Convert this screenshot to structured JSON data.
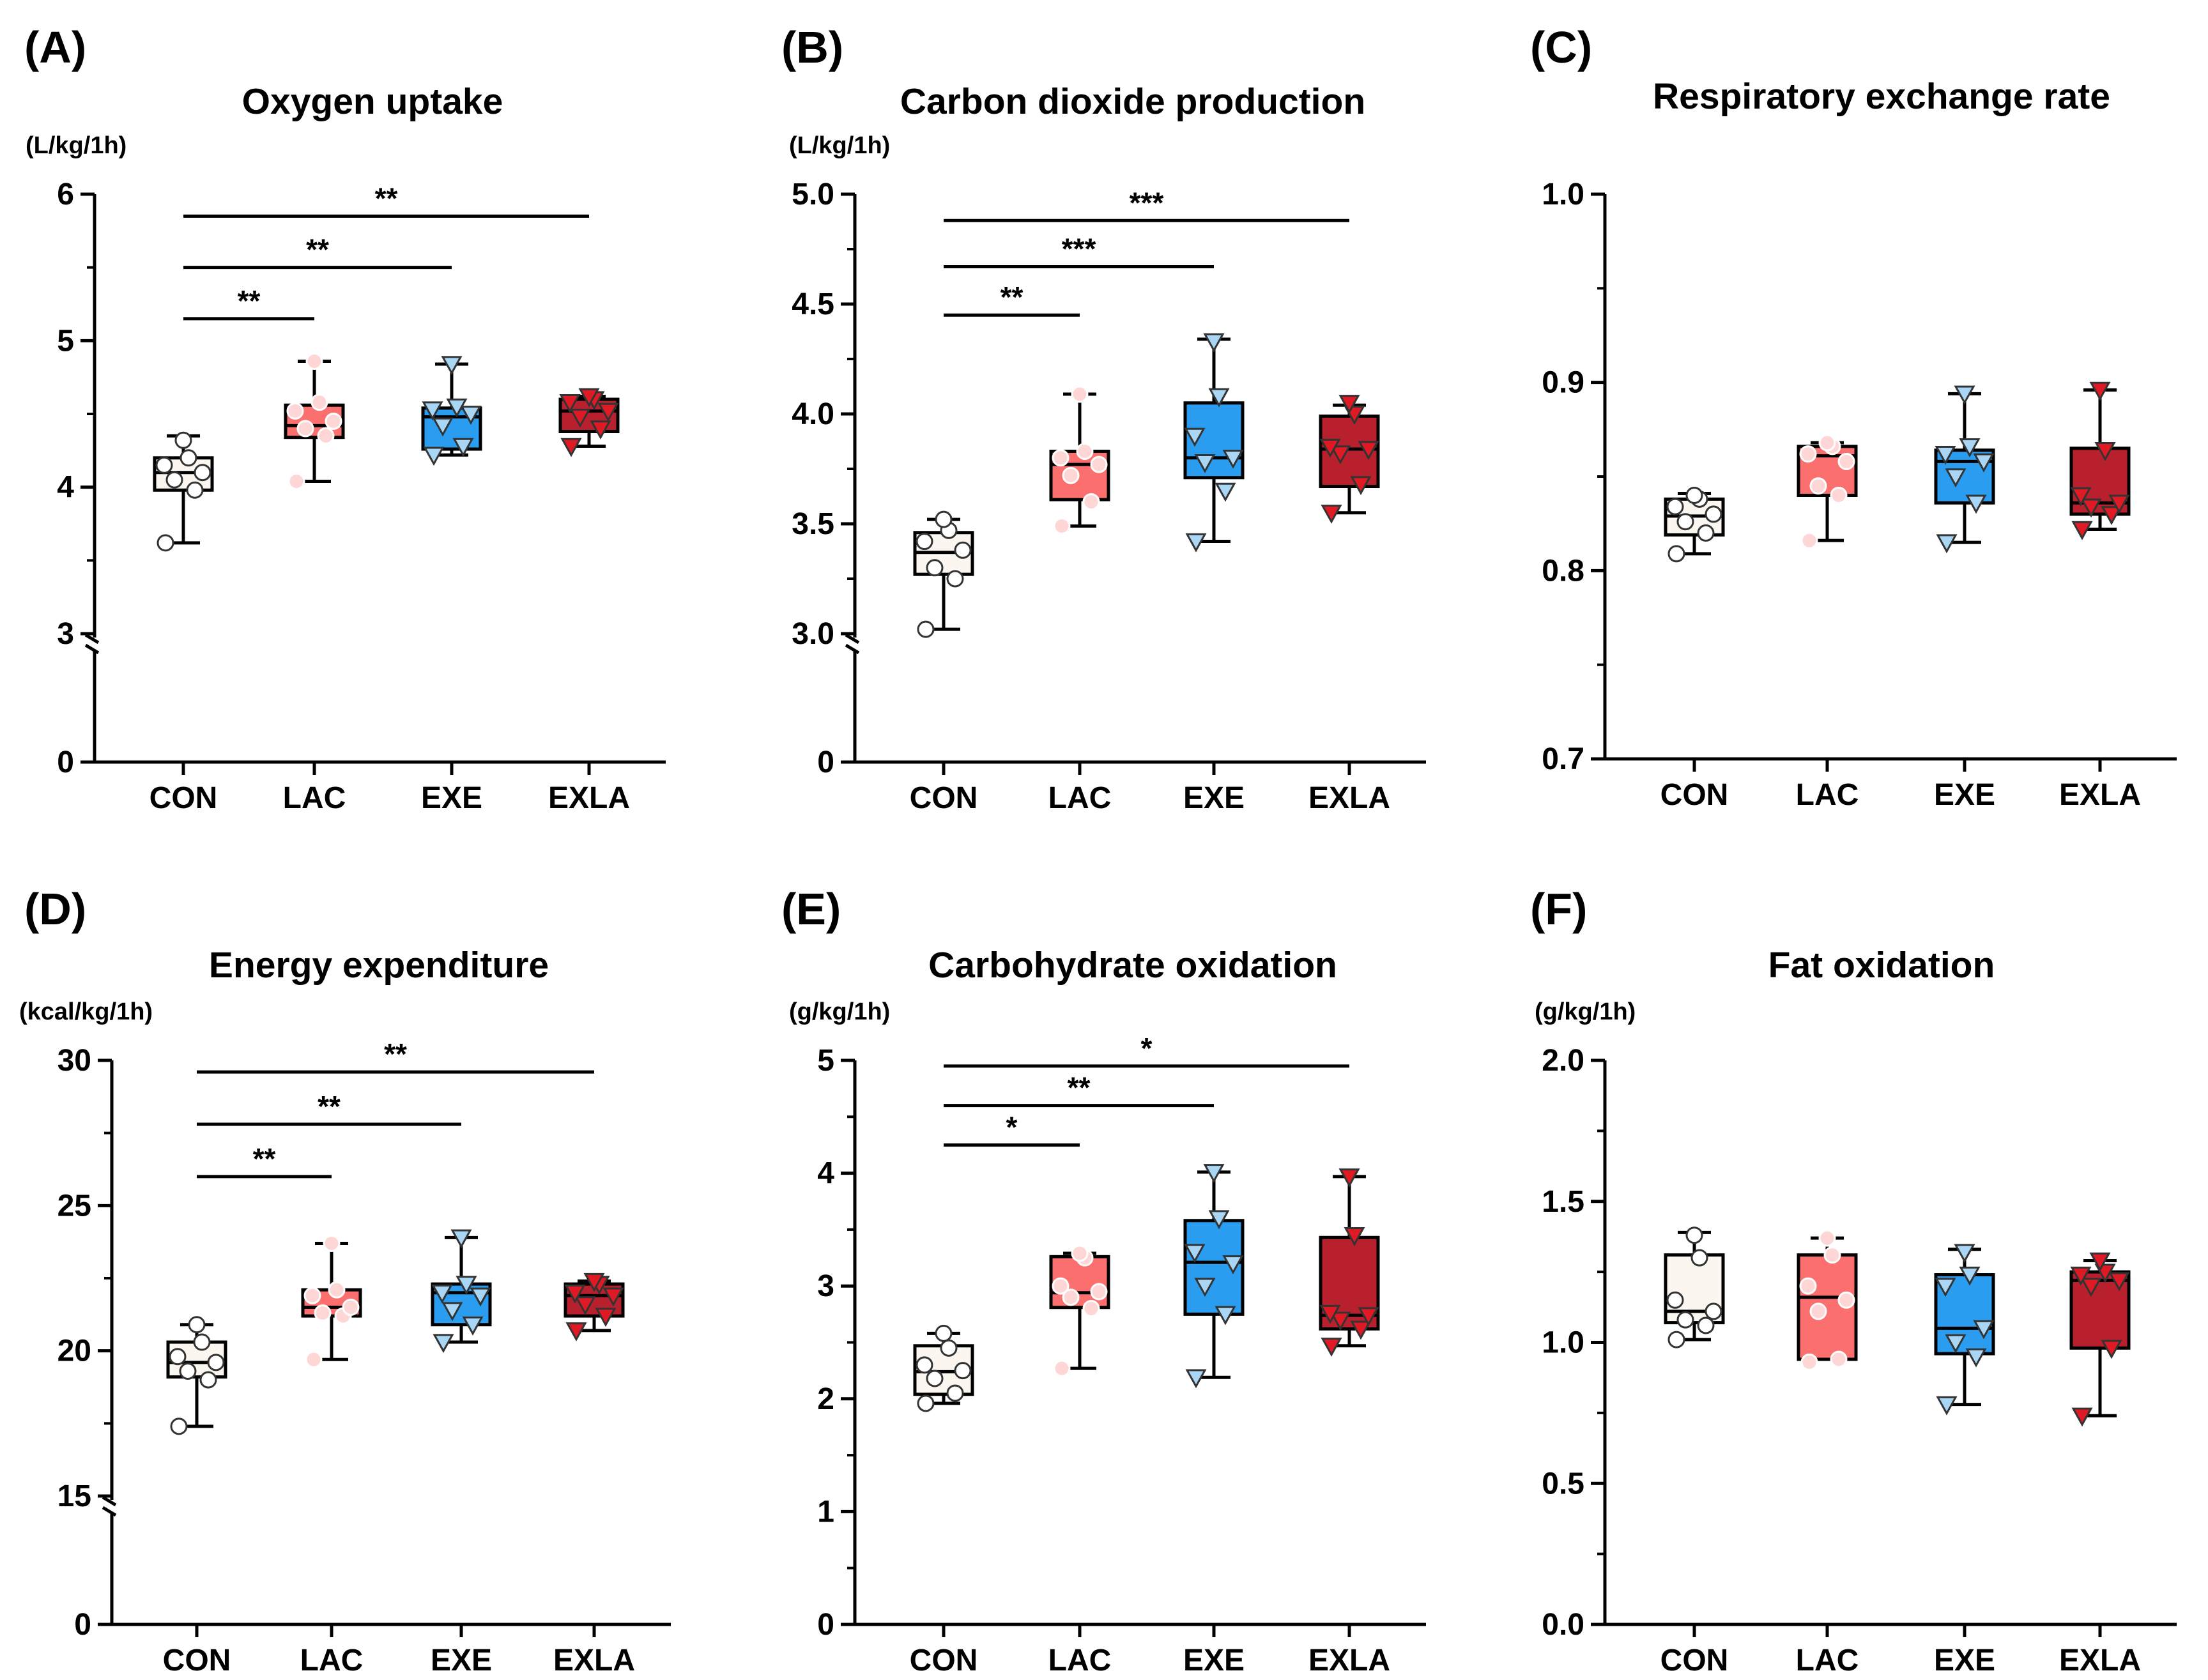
{
  "figure": {
    "description_groups": [
      "CON",
      "LAC",
      "EXE",
      "EXLA"
    ]
  },
  "colors": {
    "CON": "#fbf7f0",
    "LAC": "#fc6f6f",
    "EXE": "#2a9df0",
    "EXLA": "#b8202e",
    "LAC_marker": "#ffd6d6",
    "EXE_marker": "#a9d6f5",
    "EXLA_marker": "#e01a25",
    "CON_marker": "#ffffff"
  },
  "chart_data": [
    {
      "type": "box",
      "label": "(A)",
      "title": "Oxygen uptake",
      "ylabel": "(L/kg/1h)",
      "categories": [
        "CON",
        "LAC",
        "EXE",
        "EXLA"
      ],
      "ylim": [
        0,
        6
      ],
      "axis_break": [
        0,
        3
      ],
      "yticks": [
        {
          "v": 0,
          "t": "0"
        },
        {
          "v": 3,
          "t": "3"
        },
        {
          "v": 4,
          "t": "4"
        },
        {
          "v": 5,
          "t": "5"
        },
        {
          "v": 6,
          "t": "6"
        }
      ],
      "boxes": [
        {
          "group": "CON",
          "min": 3.62,
          "q1": 3.98,
          "median": 4.1,
          "q3": 4.2,
          "max": 4.35,
          "points": [
            3.62,
            3.98,
            4.05,
            4.1,
            4.15,
            4.2,
            4.32
          ]
        },
        {
          "group": "LAC",
          "min": 4.04,
          "q1": 4.34,
          "median": 4.42,
          "q3": 4.56,
          "max": 4.86,
          "points": [
            4.04,
            4.35,
            4.4,
            4.45,
            4.52,
            4.58,
            4.86
          ]
        },
        {
          "group": "EXE",
          "min": 4.22,
          "q1": 4.26,
          "median": 4.48,
          "q3": 4.54,
          "max": 4.84,
          "points": [
            4.22,
            4.28,
            4.42,
            4.5,
            4.53,
            4.55,
            4.84
          ]
        },
        {
          "group": "EXLA",
          "min": 4.28,
          "q1": 4.38,
          "median": 4.52,
          "q3": 4.6,
          "max": 4.62,
          "points": [
            4.28,
            4.4,
            4.48,
            4.52,
            4.58,
            4.6,
            4.62
          ]
        }
      ],
      "significance": [
        {
          "from": "CON",
          "to": "LAC",
          "y": 5.15,
          "label": "**"
        },
        {
          "from": "CON",
          "to": "EXE",
          "y": 5.5,
          "label": "**"
        },
        {
          "from": "CON",
          "to": "EXLA",
          "y": 5.85,
          "label": "**"
        }
      ]
    },
    {
      "type": "box",
      "label": "(B)",
      "title": "Carbon dioxide production",
      "ylabel": "(L/kg/1h)",
      "categories": [
        "CON",
        "LAC",
        "EXE",
        "EXLA"
      ],
      "ylim": [
        0,
        5.0
      ],
      "axis_break": [
        0,
        3.0
      ],
      "yticks": [
        {
          "v": 0,
          "t": "0"
        },
        {
          "v": 3.0,
          "t": "3.0"
        },
        {
          "v": 3.5,
          "t": "3.5"
        },
        {
          "v": 4.0,
          "t": "4.0"
        },
        {
          "v": 4.5,
          "t": "4.5"
        },
        {
          "v": 5.0,
          "t": "5.0"
        }
      ],
      "boxes": [
        {
          "group": "CON",
          "min": 3.02,
          "q1": 3.27,
          "median": 3.37,
          "q3": 3.46,
          "max": 3.52,
          "points": [
            3.02,
            3.25,
            3.3,
            3.38,
            3.42,
            3.47,
            3.52
          ]
        },
        {
          "group": "LAC",
          "min": 3.49,
          "q1": 3.61,
          "median": 3.77,
          "q3": 3.83,
          "max": 4.09,
          "points": [
            3.49,
            3.6,
            3.72,
            3.77,
            3.8,
            3.83,
            4.09
          ]
        },
        {
          "group": "EXE",
          "min": 3.42,
          "q1": 3.71,
          "median": 3.8,
          "q3": 4.05,
          "max": 4.34,
          "points": [
            3.42,
            3.65,
            3.78,
            3.8,
            3.9,
            4.08,
            4.33
          ]
        },
        {
          "group": "EXLA",
          "min": 3.55,
          "q1": 3.67,
          "median": 3.84,
          "q3": 3.99,
          "max": 4.04,
          "points": [
            3.55,
            3.68,
            3.82,
            3.84,
            3.85,
            4.0,
            4.05
          ]
        }
      ],
      "significance": [
        {
          "from": "CON",
          "to": "LAC",
          "y": 4.45,
          "label": "**"
        },
        {
          "from": "CON",
          "to": "EXE",
          "y": 4.67,
          "label": "***"
        },
        {
          "from": "CON",
          "to": "EXLA",
          "y": 4.88,
          "label": "***"
        }
      ]
    },
    {
      "type": "box",
      "label": "(C)",
      "title": "Respiratory exchange rate",
      "ylabel": "",
      "categories": [
        "CON",
        "LAC",
        "EXE",
        "EXLA"
      ],
      "ylim": [
        0.7,
        1.0
      ],
      "axis_break": null,
      "yticks": [
        {
          "v": 0.7,
          "t": "0.7"
        },
        {
          "v": 0.8,
          "t": "0.8"
        },
        {
          "v": 0.9,
          "t": "0.9"
        },
        {
          "v": 1.0,
          "t": "1.0"
        }
      ],
      "boxes": [
        {
          "group": "CON",
          "min": 0.809,
          "q1": 0.819,
          "median": 0.829,
          "q3": 0.838,
          "max": 0.841,
          "points": [
            0.809,
            0.82,
            0.826,
            0.83,
            0.834,
            0.838,
            0.84
          ]
        },
        {
          "group": "LAC",
          "min": 0.816,
          "q1": 0.84,
          "median": 0.861,
          "q3": 0.866,
          "max": 0.868,
          "points": [
            0.816,
            0.84,
            0.845,
            0.858,
            0.862,
            0.866,
            0.868
          ]
        },
        {
          "group": "EXE",
          "min": 0.815,
          "q1": 0.836,
          "median": 0.858,
          "q3": 0.864,
          "max": 0.894,
          "points": [
            0.815,
            0.836,
            0.85,
            0.858,
            0.862,
            0.866,
            0.894
          ]
        },
        {
          "group": "EXLA",
          "min": 0.822,
          "q1": 0.83,
          "median": 0.836,
          "q3": 0.865,
          "max": 0.896,
          "points": [
            0.822,
            0.83,
            0.834,
            0.836,
            0.84,
            0.864,
            0.896
          ]
        }
      ],
      "significance": []
    },
    {
      "type": "box",
      "label": "(D)",
      "title": "Energy expenditure",
      "ylabel": "(kcal/kg/1h)",
      "categories": [
        "CON",
        "LAC",
        "EXE",
        "EXLA"
      ],
      "ylim": [
        0,
        30
      ],
      "axis_break": [
        0,
        15
      ],
      "yticks": [
        {
          "v": 0,
          "t": "0"
        },
        {
          "v": 15,
          "t": "15"
        },
        {
          "v": 20,
          "t": "20"
        },
        {
          "v": 25,
          "t": "25"
        },
        {
          "v": 30,
          "t": "30"
        }
      ],
      "boxes": [
        {
          "group": "CON",
          "min": 17.4,
          "q1": 19.1,
          "median": 19.6,
          "q3": 20.3,
          "max": 20.9,
          "points": [
            17.4,
            19.0,
            19.3,
            19.6,
            19.8,
            20.3,
            20.9
          ]
        },
        {
          "group": "LAC",
          "min": 19.7,
          "q1": 21.2,
          "median": 21.5,
          "q3": 22.1,
          "max": 23.7,
          "points": [
            19.7,
            21.2,
            21.3,
            21.5,
            21.9,
            22.1,
            23.7
          ]
        },
        {
          "group": "EXE",
          "min": 20.3,
          "q1": 20.9,
          "median": 22.0,
          "q3": 22.3,
          "max": 23.9,
          "points": [
            20.3,
            20.9,
            21.4,
            21.9,
            22.0,
            22.3,
            23.9
          ]
        },
        {
          "group": "EXLA",
          "min": 20.7,
          "q1": 21.2,
          "median": 21.9,
          "q3": 22.3,
          "max": 22.4,
          "points": [
            20.7,
            21.2,
            21.6,
            21.9,
            22.0,
            22.3,
            22.4
          ]
        }
      ],
      "significance": [
        {
          "from": "CON",
          "to": "LAC",
          "y": 26.0,
          "label": "**"
        },
        {
          "from": "CON",
          "to": "EXE",
          "y": 27.8,
          "label": "**"
        },
        {
          "from": "CON",
          "to": "EXLA",
          "y": 29.6,
          "label": "**"
        }
      ]
    },
    {
      "type": "box",
      "label": "(E)",
      "title": "Carbohydrate oxidation",
      "ylabel": "(g/kg/1h)",
      "categories": [
        "CON",
        "LAC",
        "EXE",
        "EXLA"
      ],
      "ylim": [
        0,
        5
      ],
      "axis_break": null,
      "yticks": [
        {
          "v": 0,
          "t": "0"
        },
        {
          "v": 1,
          "t": "1"
        },
        {
          "v": 2,
          "t": "2"
        },
        {
          "v": 3,
          "t": "3"
        },
        {
          "v": 4,
          "t": "4"
        },
        {
          "v": 5,
          "t": "5"
        }
      ],
      "boxes": [
        {
          "group": "CON",
          "min": 1.96,
          "q1": 2.04,
          "median": 2.24,
          "q3": 2.47,
          "max": 2.58,
          "points": [
            1.96,
            2.05,
            2.18,
            2.25,
            2.3,
            2.45,
            2.58
          ]
        },
        {
          "group": "LAC",
          "min": 2.27,
          "q1": 2.81,
          "median": 2.94,
          "q3": 3.26,
          "max": 3.29,
          "points": [
            2.27,
            2.8,
            2.9,
            2.95,
            3.0,
            3.25,
            3.29
          ]
        },
        {
          "group": "EXE",
          "min": 2.19,
          "q1": 2.75,
          "median": 3.21,
          "q3": 3.58,
          "max": 4.01,
          "points": [
            2.19,
            2.75,
            3.0,
            3.2,
            3.3,
            3.6,
            4.01
          ]
        },
        {
          "group": "EXLA",
          "min": 2.47,
          "q1": 2.62,
          "median": 2.74,
          "q3": 3.43,
          "max": 3.97,
          "points": [
            2.47,
            2.62,
            2.7,
            2.74,
            2.76,
            3.45,
            3.97
          ]
        }
      ],
      "significance": [
        {
          "from": "CON",
          "to": "LAC",
          "y": 4.25,
          "label": "*"
        },
        {
          "from": "CON",
          "to": "EXE",
          "y": 4.6,
          "label": "**"
        },
        {
          "from": "CON",
          "to": "EXLA",
          "y": 4.95,
          "label": "*"
        }
      ]
    },
    {
      "type": "box",
      "label": "(F)",
      "title": "Fat oxidation",
      "ylabel": "(g/kg/1h)",
      "categories": [
        "CON",
        "LAC",
        "EXE",
        "EXLA"
      ],
      "ylim": [
        0,
        2.0
      ],
      "axis_break": null,
      "yticks": [
        {
          "v": 0,
          "t": "0.0"
        },
        {
          "v": 0.5,
          "t": "0.5"
        },
        {
          "v": 1.0,
          "t": "1.0"
        },
        {
          "v": 1.5,
          "t": "1.5"
        },
        {
          "v": 2.0,
          "t": "2.0"
        }
      ],
      "boxes": [
        {
          "group": "CON",
          "min": 1.01,
          "q1": 1.07,
          "median": 1.11,
          "q3": 1.31,
          "max": 1.39,
          "points": [
            1.01,
            1.06,
            1.08,
            1.11,
            1.15,
            1.3,
            1.38
          ]
        },
        {
          "group": "LAC",
          "min": 0.94,
          "q1": 0.94,
          "median": 1.16,
          "q3": 1.31,
          "max": 1.37,
          "points": [
            0.93,
            0.94,
            1.11,
            1.15,
            1.2,
            1.31,
            1.37
          ]
        },
        {
          "group": "EXE",
          "min": 0.78,
          "q1": 0.96,
          "median": 1.05,
          "q3": 1.24,
          "max": 1.33,
          "points": [
            0.78,
            0.95,
            1.0,
            1.05,
            1.2,
            1.24,
            1.32
          ]
        },
        {
          "group": "EXLA",
          "min": 0.74,
          "q1": 0.98,
          "median": 1.22,
          "q3": 1.25,
          "max": 1.29,
          "points": [
            0.74,
            0.98,
            1.2,
            1.22,
            1.24,
            1.25,
            1.29
          ]
        }
      ],
      "significance": []
    }
  ]
}
